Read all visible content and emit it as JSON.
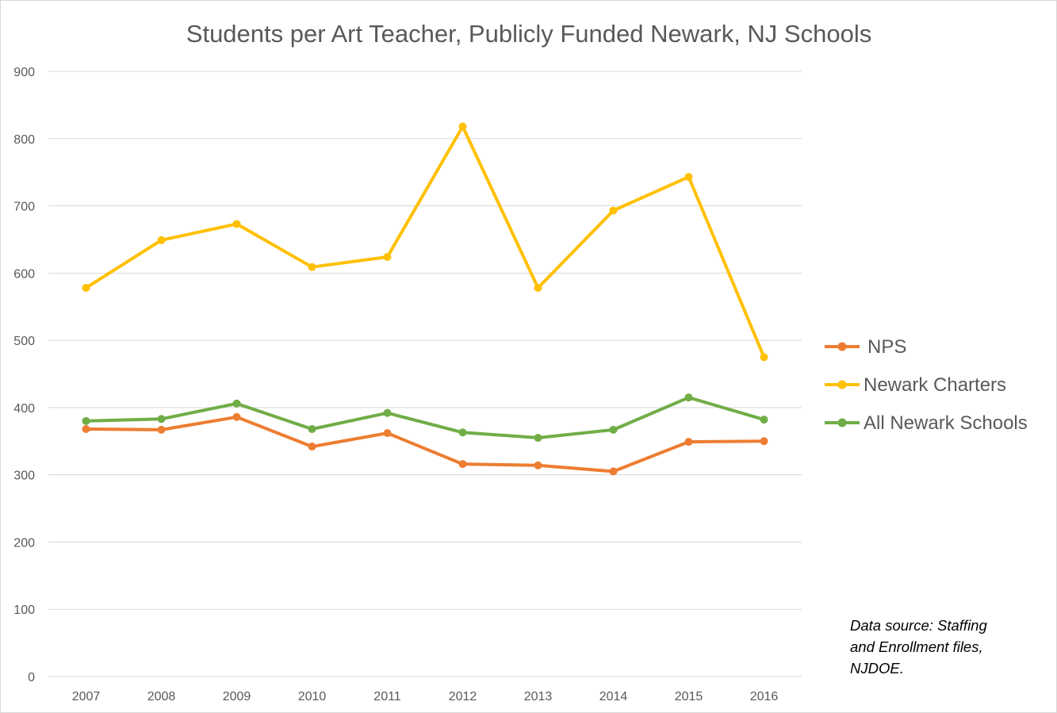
{
  "chart_data": {
    "type": "line",
    "title": "Students per Art Teacher, Publicly Funded Newark, NJ Schools",
    "xlabel": "",
    "ylabel": "",
    "categories": [
      "2007",
      "2008",
      "2009",
      "2010",
      "2011",
      "2012",
      "2013",
      "2014",
      "2015",
      "2016"
    ],
    "ylim": [
      0,
      900
    ],
    "yticks": [
      0,
      100,
      200,
      300,
      400,
      500,
      600,
      700,
      800,
      900
    ],
    "grid": true,
    "legend_position": "right",
    "series": [
      {
        "name": "NPS",
        "color": "#ED7D31",
        "values": [
          368,
          367,
          386,
          342,
          362,
          316,
          314,
          305,
          349,
          350
        ]
      },
      {
        "name": "Newark Charters",
        "color": "#FFC000",
        "values": [
          578,
          649,
          673,
          609,
          624,
          818,
          578,
          693,
          743,
          475
        ]
      },
      {
        "name": "All Newark Schools",
        "color": "#70AD47",
        "values": [
          380,
          383,
          406,
          368,
          392,
          363,
          355,
          367,
          415,
          382
        ]
      }
    ]
  },
  "annotation": {
    "lines": [
      "Data source: Staffing",
      "and Enrollment  files,",
      "NJDOE."
    ]
  }
}
